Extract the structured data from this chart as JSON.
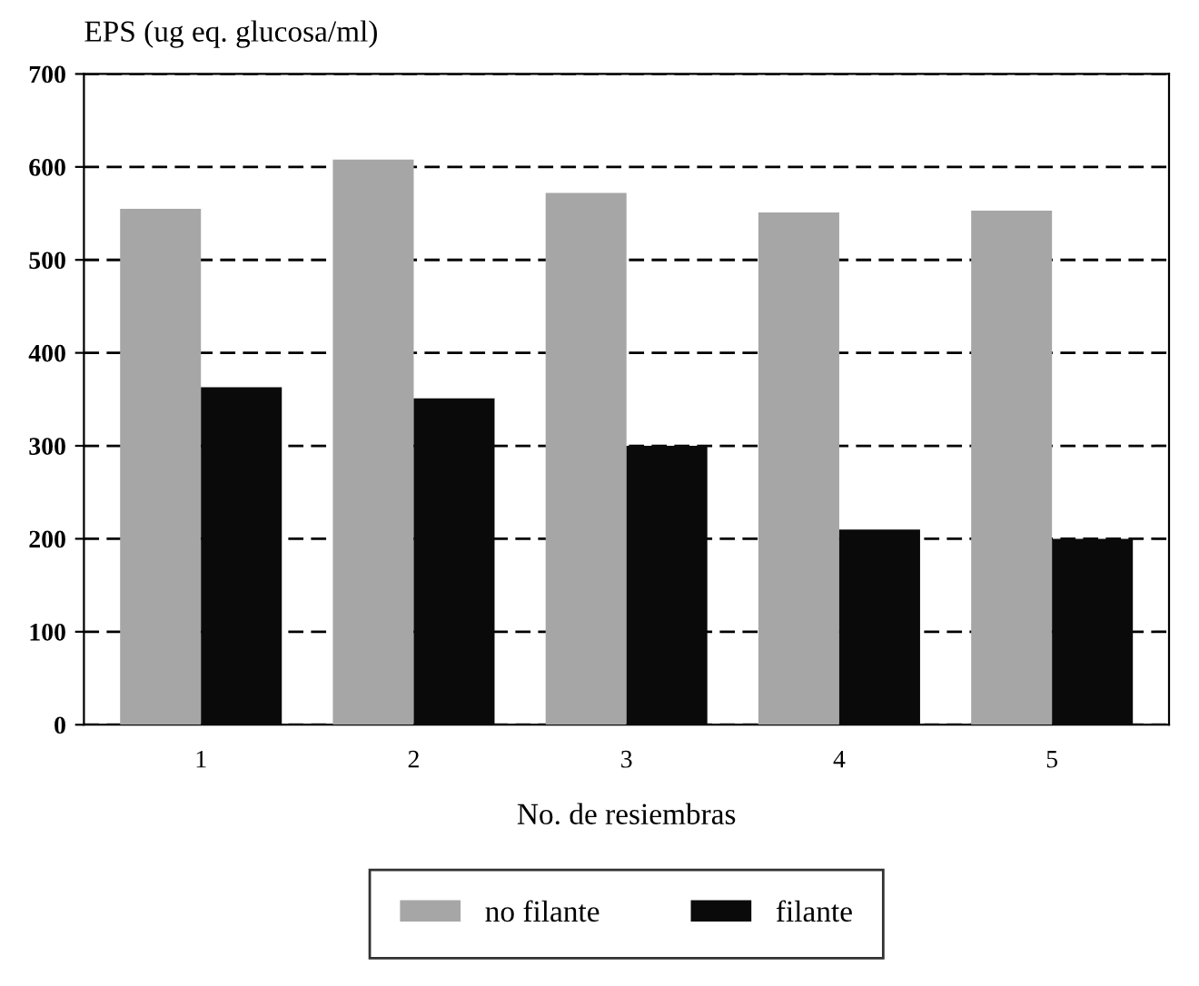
{
  "chart_data": {
    "type": "bar",
    "ylabel": "EPS (ug eq. glucosa/ml)",
    "xlabel": "No. de resiembras",
    "categories": [
      "1",
      "2",
      "3",
      "4",
      "5"
    ],
    "series": [
      {
        "name": "no filante",
        "color": "#a6a6a6",
        "values": [
          555,
          608,
          572,
          551,
          553
        ]
      },
      {
        "name": "filante",
        "color": "#0a0a0a",
        "values": [
          363,
          351,
          300,
          210,
          200
        ]
      }
    ],
    "ylim": [
      0,
      700
    ],
    "yticks": [
      0,
      100,
      200,
      300,
      400,
      500,
      600,
      700
    ],
    "grid": "y",
    "legend": "bottom"
  }
}
